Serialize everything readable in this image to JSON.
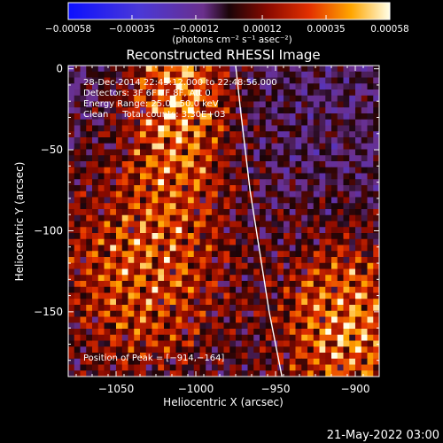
{
  "chart_data": {
    "type": "heatmap",
    "title": "Reconstructed RHESSI Image",
    "xlabel": "Heliocentric X (arcsec)",
    "ylabel": "Heliocentric Y (arcsec)",
    "xlim": [
      -1080,
      -885
    ],
    "ylim": [
      -190,
      2
    ],
    "xticks": [
      -1050,
      -1000,
      -950,
      -900
    ],
    "xtick_labels": [
      "−1050",
      "−1000",
      "−950",
      "−900"
    ],
    "yticks": [
      0,
      -50,
      -100,
      -150
    ],
    "ytick_labels": [
      "0",
      "−50",
      "−100",
      "−150"
    ],
    "colorbar": {
      "range": [
        -0.00058,
        0.00058
      ],
      "ticks": [
        -0.00058,
        -0.00035,
        -0.00012,
        0.00012,
        0.00035,
        0.00058
      ],
      "tick_labels": [
        "−0.00058",
        "−0.00035",
        "−0.00012",
        "0.00012",
        "0.00035",
        "0.00058"
      ],
      "unit": "(photons cm⁻² s⁻¹ asec⁻²)"
    },
    "annotations": [
      "28-Dec-2014 22:45:12.000 to 22:48:56.000",
      "Detectors: 3F 6F 7F 8F, Att 0",
      "Energy Range: 25.0 - 50.0 keV",
      "Clean     Total counts: 3.30E+03"
    ],
    "peak_label": "Position of Peak = [−914,−164]",
    "peak": [
      -914,
      -164
    ],
    "limb_curve": {
      "x": [
        -975,
        -972,
        -969,
        -966,
        -962,
        -958,
        -954,
        -950,
        -946
      ],
      "y": [
        2,
        -25,
        -50,
        -75,
        -100,
        -125,
        -150,
        -170,
        -190
      ]
    },
    "sources": [
      {
        "x": -1010,
        "y": -15,
        "sx": 22,
        "sy": 45,
        "amp": 0.00055
      },
      {
        "x": -1035,
        "y": -125,
        "sx": 40,
        "sy": 50,
        "amp": 0.00045
      },
      {
        "x": -905,
        "y": -160,
        "sx": 30,
        "sy": 40,
        "amp": 0.00058
      }
    ],
    "grid": false
  },
  "footer_timestamp": "21-May-2022 03:00",
  "colors": {
    "background": "#000000",
    "text": "#ffffff",
    "limb": "#ffffff"
  }
}
